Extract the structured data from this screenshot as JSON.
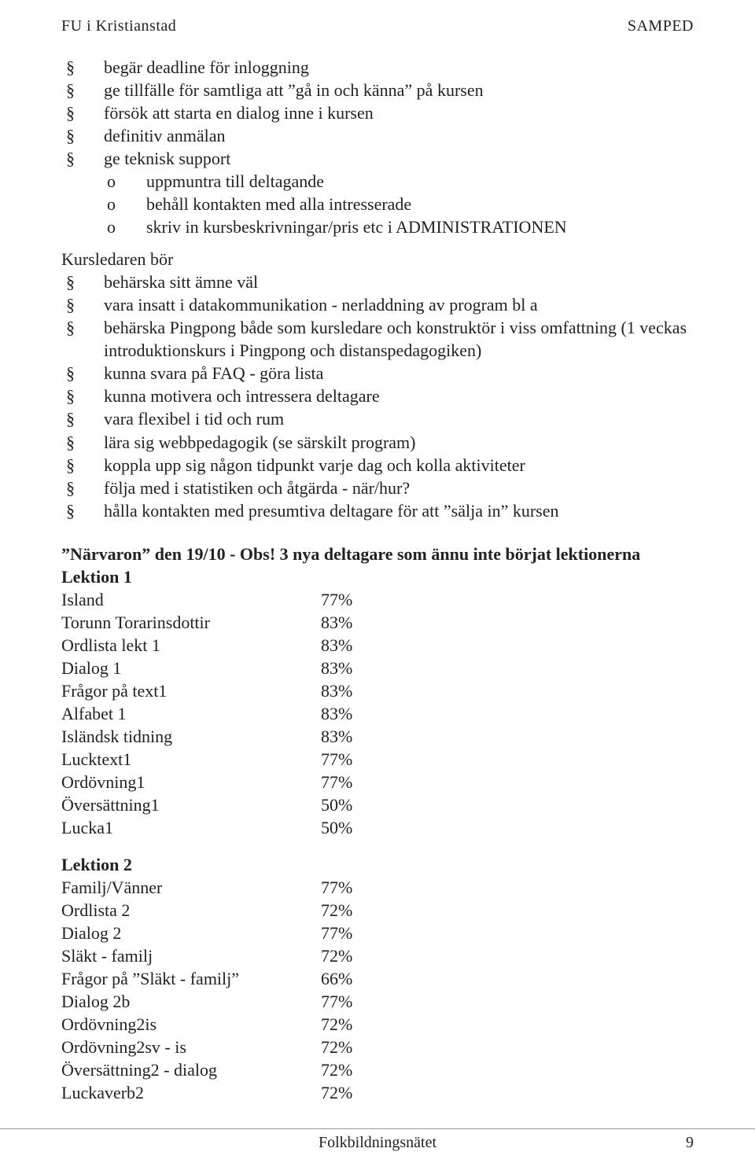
{
  "header": {
    "left": "FU i Kristianstad",
    "right": "SAMPED"
  },
  "bullet_glyph": "§",
  "sub_glyph": "o",
  "block1": {
    "items": [
      "begär deadline för inloggning",
      "ge tillfälle för samtliga att ”gå in och känna” på kursen",
      "försök att starta en dialog inne i kursen",
      "definitiv anmälan",
      "ge teknisk support"
    ],
    "subitems": [
      "uppmuntra till deltagande",
      "behåll kontakten med alla intresserade",
      "skriv in kursbeskrivningar/pris etc i ADMINISTRATIONEN"
    ]
  },
  "kursledaren_intro": "Kursledaren bör",
  "block2": {
    "items": [
      "behärska sitt ämne väl",
      "vara insatt i datakommunikation - nerladdning av program bl a",
      "behärska Pingpong både som kursledare och konstruktör i viss omfattning (1 veckas introduktionskurs i Pingpong och distanspedagogiken)",
      "kunna svara på FAQ - göra lista",
      "kunna motivera och intressera deltagare",
      "vara flexibel i tid och rum",
      "lära sig webbpedagogik (se särskilt program)",
      "koppla upp sig någon tidpunkt varje dag och kolla aktiviteter",
      "följa med i statistiken och åtgärda - när/hur?",
      "hålla kontakten med presumtiva deltagare för att ”sälja in” kursen"
    ]
  },
  "narvaro_heading": "”Närvaron” den 19/10 - Obs! 3 nya deltagare som ännu inte börjat lektionerna",
  "lektion1": {
    "title": "Lektion 1",
    "rows": [
      {
        "label": "Island",
        "value": "77%"
      },
      {
        "label": "Torunn Torarinsdottir",
        "value": "83%"
      },
      {
        "label": "Ordlista lekt 1",
        "value": "83%"
      },
      {
        "label": "Dialog 1",
        "value": "83%"
      },
      {
        "label": " Frågor på text1",
        "value": "83%"
      },
      {
        "label": "Alfabet 1",
        "value": "83%"
      },
      {
        "label": "Isländsk tidning",
        "value": "83%"
      },
      {
        "label": "Lucktext1",
        "value": "77%"
      },
      {
        "label": "Ordövning1",
        "value": "77%"
      },
      {
        "label": "Översättning1",
        "value": "50%"
      },
      {
        "label": "Lucka1",
        "value": "50%"
      }
    ]
  },
  "lektion2": {
    "title": "Lektion 2",
    "rows": [
      {
        "label": "Familj/Vänner",
        "value": "77%"
      },
      {
        "label": "Ordlista 2",
        "value": "72%"
      },
      {
        "label": "Dialog 2",
        "value": "77%"
      },
      {
        "label": "Släkt - familj",
        "value": "72%"
      },
      {
        "label": "Frågor på ”Släkt - familj”",
        "value": "66%"
      },
      {
        "label": "Dialog 2b",
        "value": "77%"
      },
      {
        "label": "Ordövning2is",
        "value": "72%"
      },
      {
        "label": "Ordövning2sv - is",
        "value": "72%"
      },
      {
        "label": "Översättning2 - dialog",
        "value": "72%"
      },
      {
        "label": "Luckaverb2",
        "value": "72%"
      }
    ]
  },
  "footer": {
    "center": "Folkbildningsnätet",
    "page": "9"
  }
}
